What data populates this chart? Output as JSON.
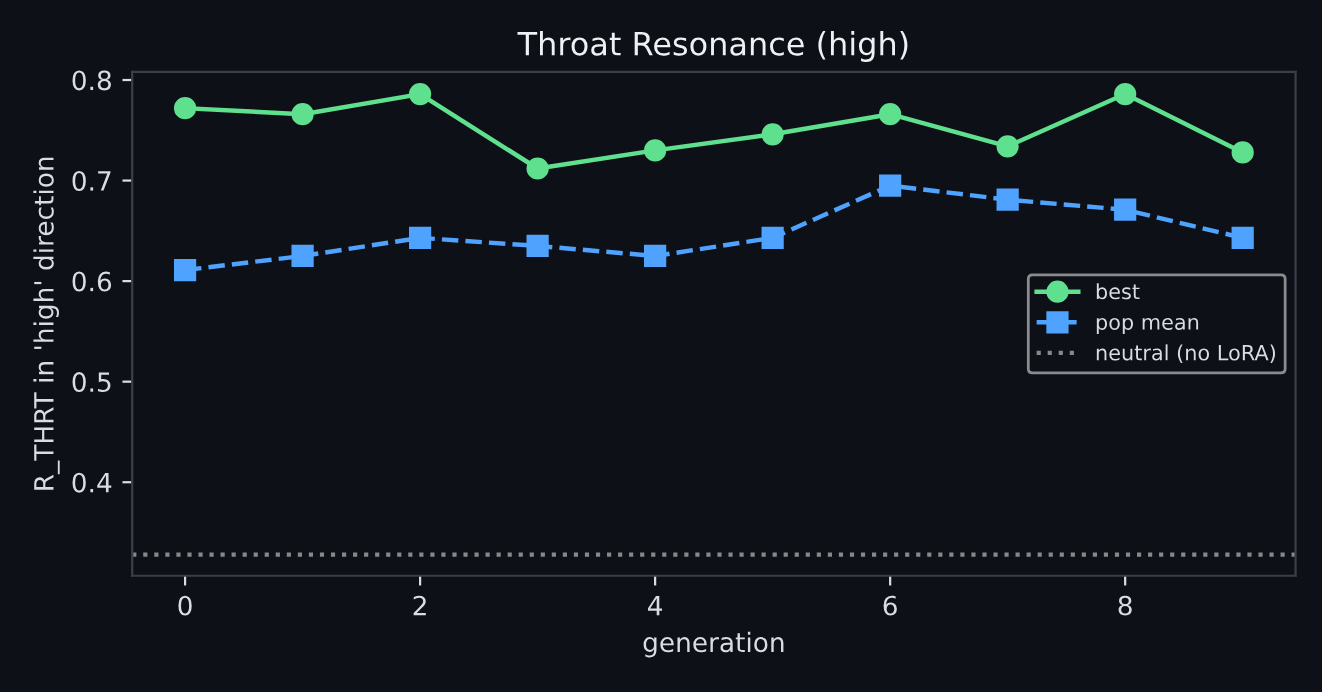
{
  "chart_data": {
    "type": "line",
    "title": "Throat Resonance (high)",
    "xlabel": "generation",
    "ylabel": "R_THRT in 'high' direction",
    "x": [
      0,
      1,
      2,
      3,
      4,
      5,
      6,
      7,
      8,
      9
    ],
    "series": [
      {
        "name": "best",
        "color": "#5fe08f",
        "values": [
          0.772,
          0.766,
          0.786,
          0.712,
          0.73,
          0.746,
          0.766,
          0.734,
          0.786,
          0.728
        ],
        "marker": "circle",
        "line_style": "solid"
      },
      {
        "name": "pop mean",
        "color": "#4fa3ff",
        "values": [
          0.611,
          0.625,
          0.643,
          0.635,
          0.625,
          0.643,
          0.695,
          0.681,
          0.671,
          0.643
        ],
        "marker": "square",
        "line_style": "dashed"
      }
    ],
    "ref_lines": [
      {
        "axis": "y",
        "value": 0.328,
        "label": "neutral (no LoRA)",
        "color": "#888888",
        "line_style": "dotted"
      }
    ],
    "xlim": [
      -0.45,
      9.45
    ],
    "ylim": [
      0.307,
      0.808
    ],
    "xticks": [
      0,
      2,
      4,
      6,
      8
    ],
    "yticks": [
      0.4,
      0.5,
      0.6,
      0.7,
      0.8
    ],
    "grid": false,
    "legend": "right"
  }
}
